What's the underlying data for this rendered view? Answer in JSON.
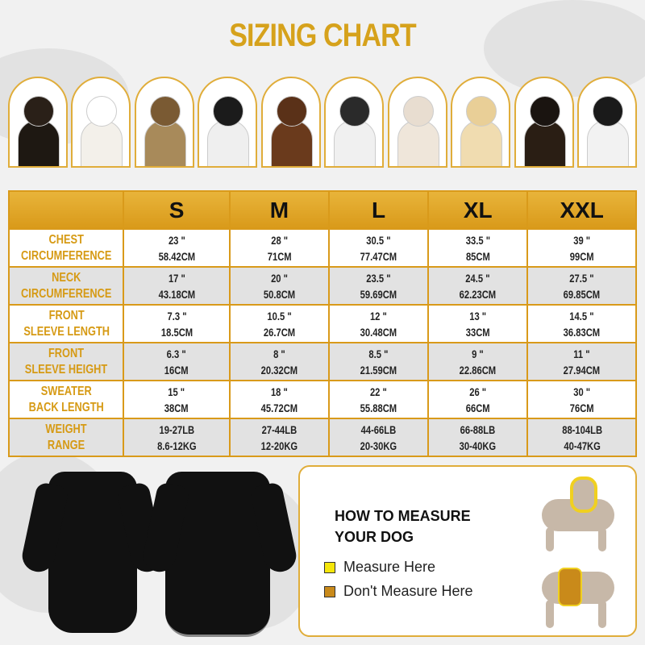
{
  "title": "SIZING CHART",
  "table": {
    "sizes": [
      "S",
      "M",
      "L",
      "XL",
      "XXL"
    ],
    "rows": [
      {
        "label": [
          "CHEST",
          "CIRCUMFERENCE"
        ],
        "cells": [
          [
            "23 \"",
            "58.42CM"
          ],
          [
            "28 \"",
            "71CM"
          ],
          [
            "30.5 \"",
            "77.47CM"
          ],
          [
            "33.5 \"",
            "85CM"
          ],
          [
            "39 \"",
            "99CM"
          ]
        ]
      },
      {
        "label": [
          "NECK",
          "CIRCUMFERENCE"
        ],
        "cells": [
          [
            "17 \"",
            "43.18CM"
          ],
          [
            "20 \"",
            "50.8CM"
          ],
          [
            "23.5 \"",
            "59.69CM"
          ],
          [
            "24.5 \"",
            "62.23CM"
          ],
          [
            "27.5 \"",
            "69.85CM"
          ]
        ]
      },
      {
        "label": [
          "FRONT",
          "SLEEVE LENGTH"
        ],
        "cells": [
          [
            "7.3 \"",
            "18.5CM"
          ],
          [
            "10.5 \"",
            "26.7CM"
          ],
          [
            "12 \"",
            "30.48CM"
          ],
          [
            "13 \"",
            "33CM"
          ],
          [
            "14.5 \"",
            "36.83CM"
          ]
        ]
      },
      {
        "label": [
          "FRONT",
          "SLEEVE HEIGHT"
        ],
        "cells": [
          [
            "6.3 \"",
            "16CM"
          ],
          [
            "8 \"",
            "20.32CM"
          ],
          [
            "8.5 \"",
            "21.59CM"
          ],
          [
            "9 \"",
            "22.86CM"
          ],
          [
            "11 \"",
            "27.94CM"
          ]
        ]
      },
      {
        "label": [
          "SWEATER",
          "BACK LENGTH"
        ],
        "cells": [
          [
            "15 \"",
            "38CM"
          ],
          [
            "18 \"",
            "45.72CM"
          ],
          [
            "22 \"",
            "55.88CM"
          ],
          [
            "26 \"",
            "66CM"
          ],
          [
            "30 \"",
            "76CM"
          ]
        ]
      },
      {
        "label": [
          "WEIGHT",
          "RANGE"
        ],
        "cells": [
          [
            "19-27LB",
            "8.6-12KG"
          ],
          [
            "27-44LB",
            "12-20KG"
          ],
          [
            "44-66LB",
            "20-30KG"
          ],
          [
            "66-88LB",
            "30-40KG"
          ],
          [
            "88-104LB",
            "40-47KG"
          ]
        ]
      }
    ]
  },
  "measure": {
    "heading": [
      "HOW TO MEASURE",
      "YOUR DOG"
    ],
    "legend": [
      {
        "label": "Measure Here",
        "color": "#f5e60a"
      },
      {
        "label": "Don't Measure Here",
        "color": "#c98a1a"
      }
    ]
  },
  "colors": {
    "gold": "#d99a1a",
    "title": "#d6a21c"
  },
  "dog_colors": [
    [
      "#2a2018",
      "#1e1812"
    ],
    [
      "#ffffff",
      "#f3f0ea"
    ],
    [
      "#7a5a33",
      "#a88a5a"
    ],
    [
      "#1b1b1b",
      "#efefef"
    ],
    [
      "#5a3118",
      "#6a3a1c"
    ],
    [
      "#2a2a2a",
      "#f0f0f0"
    ],
    [
      "#e8ddd0",
      "#efe6da"
    ],
    [
      "#e9cf97",
      "#f0dcb0"
    ],
    [
      "#1a1410",
      "#2a1e14"
    ],
    [
      "#1a1a1a",
      "#f2f2f2"
    ]
  ]
}
